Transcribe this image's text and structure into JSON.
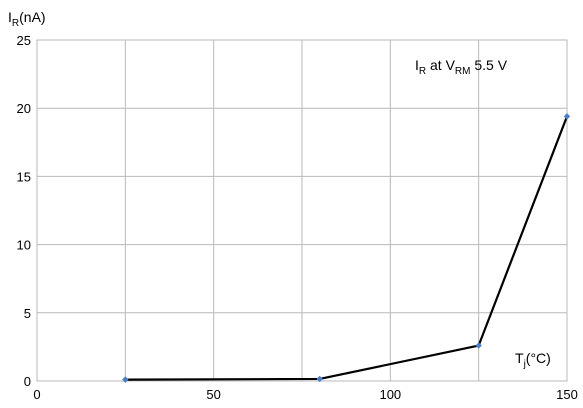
{
  "chart_data": {
    "type": "line",
    "ylabel": {
      "main": "I",
      "sub": "R",
      "rest": "(nA)"
    },
    "xlabel": {
      "main": "T",
      "sub": "j",
      "rest": "(°C)"
    },
    "annotation": {
      "a": "I",
      "a_sub": "R",
      "b": " at V",
      "b_sub": "RM",
      "c": " 5.5 V"
    },
    "xlim": [
      0,
      150
    ],
    "ylim": [
      0,
      25
    ],
    "xticks": [
      0,
      50,
      100,
      150
    ],
    "yticks": [
      0,
      5,
      10,
      15,
      20,
      25
    ],
    "grid": true,
    "series": [
      {
        "x": [
          25,
          80,
          125,
          150
        ],
        "y": [
          0.1,
          0.15,
          2.6,
          19.4
        ]
      }
    ],
    "colors": {
      "line": "#000000",
      "marker": "#4a7ec9",
      "grid": "#b9b9b9"
    }
  }
}
